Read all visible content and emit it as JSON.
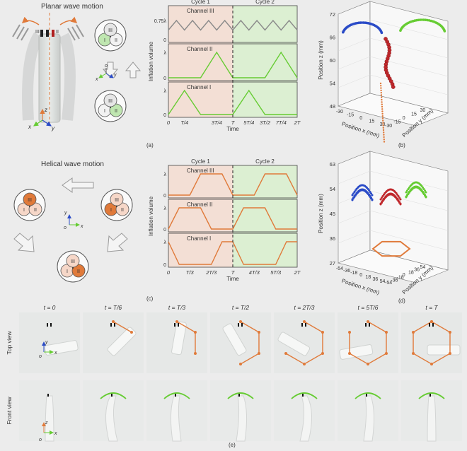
{
  "panel_a": {
    "title": "Planar wave motion",
    "chart_data": {
      "type": "line",
      "title": "",
      "xlabel": "Time",
      "ylabel": "Inflation volume",
      "cycle_labels": [
        "Cycle 1",
        "Cycle 2"
      ],
      "x_ticks": [
        "0",
        "T/4",
        "3T/4",
        "T",
        "5T/4",
        "3T/2",
        "7T/4",
        "2T"
      ],
      "series": [
        {
          "name": "Channel III",
          "color": "#8a8a8a",
          "y_tick": "0.75λ",
          "x": [
            0,
            0.125,
            0.25,
            0.375,
            0.5,
            0.625,
            0.75,
            0.875,
            1.0,
            1.125,
            1.25,
            1.375,
            1.5,
            1.625,
            1.75,
            1.875,
            2.0
          ],
          "y": [
            0.375,
            0.75,
            0.375,
            0.75,
            0.375,
            0.75,
            0.375,
            0.75,
            0.375,
            0.75,
            0.375,
            0.75,
            0.375,
            0.75,
            0.375,
            0.75,
            0.375
          ]
        },
        {
          "name": "Channel II",
          "color": "#66cc33",
          "y_tick": "λ",
          "x": [
            0,
            0.5,
            0.75,
            1.0,
            1.5,
            1.75,
            2.0
          ],
          "y": [
            0,
            0,
            1,
            0,
            0,
            1,
            0
          ]
        },
        {
          "name": "Channel I",
          "color": "#66cc33",
          "y_tick": "λ",
          "x": [
            0,
            0.25,
            0.5,
            1.0,
            1.25,
            1.5,
            2.0
          ],
          "y": [
            0,
            1,
            0,
            0,
            1,
            0,
            0
          ]
        }
      ]
    }
  },
  "panel_b": {
    "chart_data": {
      "type": "scatter",
      "zlabel": "Position z (mm)",
      "xlabel": "Position x (mm)",
      "ylabel": "Position y (mm)",
      "z_ticks": [
        "72",
        "66",
        "60",
        "54",
        "48"
      ],
      "x_ticks": [
        "-30",
        "-15",
        "0",
        "15",
        "30"
      ],
      "y_ticks": [
        "-30",
        "-15",
        "0",
        "15",
        "30"
      ]
    }
  },
  "panel_c": {
    "title": "Helical wave motion",
    "chart_data": {
      "type": "line",
      "title": "",
      "xlabel": "Time",
      "ylabel": "Inflation volume",
      "cycle_labels": [
        "Cycle 1",
        "Cycle 2"
      ],
      "x_ticks": [
        "0",
        "T/3",
        "2T/3",
        "T",
        "4T/3",
        "5T/3",
        "2T"
      ],
      "series": [
        {
          "name": "Channel III",
          "color": "#e07a3a",
          "y_tick": "λ",
          "x": [
            0,
            0.333,
            0.5,
            0.833,
            1.0,
            1.333,
            1.5,
            1.833,
            2.0
          ],
          "y": [
            0,
            0,
            1,
            1,
            0,
            0,
            1,
            1,
            0
          ]
        },
        {
          "name": "Channel II",
          "color": "#e07a3a",
          "y_tick": "λ",
          "x": [
            0,
            0.167,
            0.5,
            0.667,
            1.0,
            1.167,
            1.5,
            1.667,
            2.0
          ],
          "y": [
            0,
            1,
            1,
            0,
            0,
            1,
            1,
            0,
            0
          ]
        },
        {
          "name": "Channel I",
          "color": "#e07a3a",
          "y_tick": "λ",
          "x": [
            0,
            0.167,
            0.333,
            0.667,
            0.833,
            1.0,
            1.167,
            1.333,
            1.667,
            1.833,
            2.0
          ],
          "y": [
            1,
            0,
            0,
            0,
            1,
            1,
            0,
            0,
            0,
            1,
            1
          ]
        }
      ]
    }
  },
  "panel_d": {
    "chart_data": {
      "type": "scatter",
      "zlabel": "Position z (mm)",
      "xlabel": "Position x (mm)",
      "ylabel": "Position y (mm)",
      "z_ticks": [
        "63",
        "54",
        "45",
        "36",
        "27"
      ],
      "x_ticks": [
        "-54",
        "-36",
        "-18",
        "0",
        "18",
        "36",
        "54"
      ],
      "y_ticks": [
        "-54",
        "-36",
        "-18",
        "0",
        "18",
        "36",
        "54"
      ]
    }
  },
  "panel_e": {
    "time_labels": [
      "t = 0",
      "t = T/6",
      "t = T/3",
      "t = T/2",
      "t = 2T/3",
      "t = 5T/6",
      "t = T"
    ],
    "row_labels": [
      "Top view",
      "Front view"
    ]
  },
  "channel_labels": [
    "I",
    "II",
    "III"
  ],
  "axis_letters": {
    "x": "x",
    "y": "y",
    "z": "z",
    "o": "o"
  },
  "panel_letters": {
    "a": "(a)",
    "b": "(b)",
    "c": "(c)",
    "d": "(d)",
    "e": "(e)"
  },
  "colors": {
    "orange": "#e07a3a",
    "green": "#66cc33",
    "blue": "#2a4bc7",
    "red": "#c0282c",
    "gray": "#8a8a8a"
  }
}
